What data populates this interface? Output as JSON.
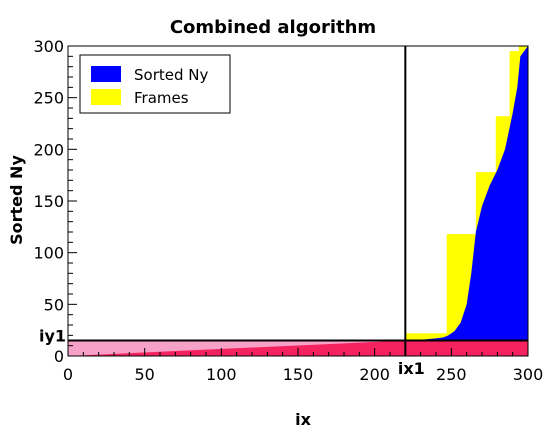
{
  "chart_data": {
    "type": "bar",
    "title": "Combined algorithm",
    "xlabel": "ix",
    "ylabel": "Sorted Ny",
    "xlim": [
      0,
      300
    ],
    "ylim": [
      0,
      300
    ],
    "xticks": [
      0,
      50,
      100,
      150,
      200,
      250,
      300
    ],
    "yticks": [
      0,
      50,
      100,
      150,
      200,
      250,
      300
    ],
    "grid": false,
    "legend": {
      "position": "top-left",
      "entries": [
        {
          "label": "Sorted Ny",
          "color": "#0000ff"
        },
        {
          "label": "Frames",
          "color": "#ffff00"
        }
      ]
    },
    "markers": {
      "ix1": {
        "label": "ix1",
        "x": 220
      },
      "iy1": {
        "label": "iy1",
        "y": 15
      }
    },
    "colors": {
      "sorted": "#0000ff",
      "frames": "#ffff00",
      "lower_fill": "#f4225f",
      "lower_fill_light": "#f7a1c8"
    },
    "series": [
      {
        "name": "Sorted Ny",
        "color": "#0000ff",
        "x": [
          0,
          220,
          232,
          240,
          245,
          248,
          252,
          256,
          260,
          263,
          266,
          270,
          275,
          280,
          285,
          290,
          293,
          295,
          300
        ],
        "y": [
          0,
          15,
          16,
          17,
          18,
          20,
          24,
          32,
          50,
          80,
          120,
          145,
          165,
          180,
          200,
          235,
          260,
          290,
          300
        ]
      },
      {
        "name": "Frames",
        "color": "#ffff00",
        "x": [
          220,
          233,
          233,
          247,
          247,
          266,
          266,
          279,
          279,
          288,
          288,
          294,
          294,
          300
        ],
        "y": [
          22,
          22,
          22,
          22,
          118,
          118,
          178,
          178,
          232,
          232,
          295,
          295,
          300,
          300
        ]
      },
      {
        "color": "#f4225f",
        "x": [
          0,
          220
        ],
        "y": [
          0,
          15
        ]
      }
    ]
  }
}
